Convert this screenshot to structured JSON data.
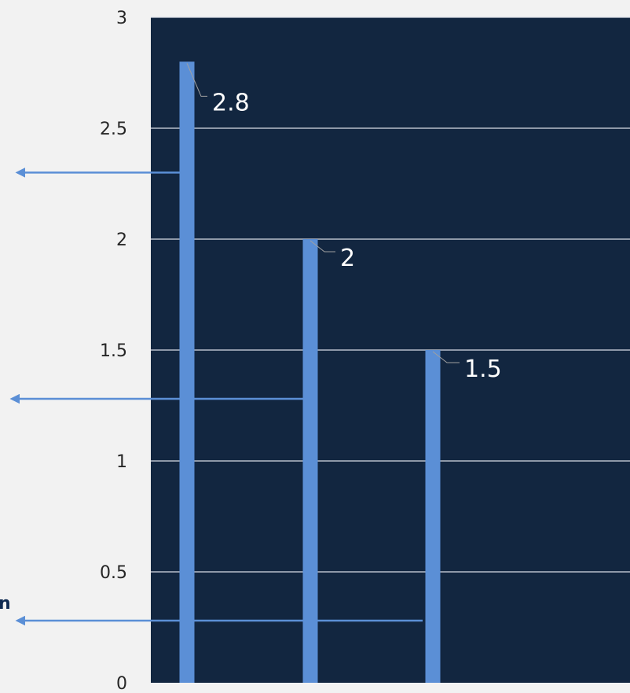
{
  "chart_data": {
    "type": "bar",
    "categories": [
      "",
      "",
      ""
    ],
    "values": [
      2.8,
      2,
      1.5
    ],
    "value_labels": [
      "2.8",
      "2",
      "1.5"
    ],
    "title": "",
    "xlabel": "",
    "ylabel": "",
    "ylim": [
      0,
      3
    ],
    "yticks": [
      0,
      0.5,
      1,
      1.5,
      2,
      2.5,
      3
    ],
    "ytick_labels": [
      "0",
      "0.5",
      "1",
      "1.5",
      "2",
      "2.5",
      "3"
    ],
    "grid": true,
    "legend": "none",
    "annotations": {
      "arrows": [
        {
          "target_value": 2.3
        },
        {
          "target_value": 1.28
        },
        {
          "target_value": 0.28
        }
      ],
      "left_text": "n"
    }
  },
  "colors": {
    "page_background": "#f2f2f2",
    "plot_background": "#122640",
    "bar": "#5b8fd6",
    "gridline": "#d8dde5",
    "arrow": "#5b8fd6",
    "label": "#ffffff",
    "tick": "#262626",
    "leader_line": "#a0a0a0",
    "left_text": "#0f2a52"
  }
}
